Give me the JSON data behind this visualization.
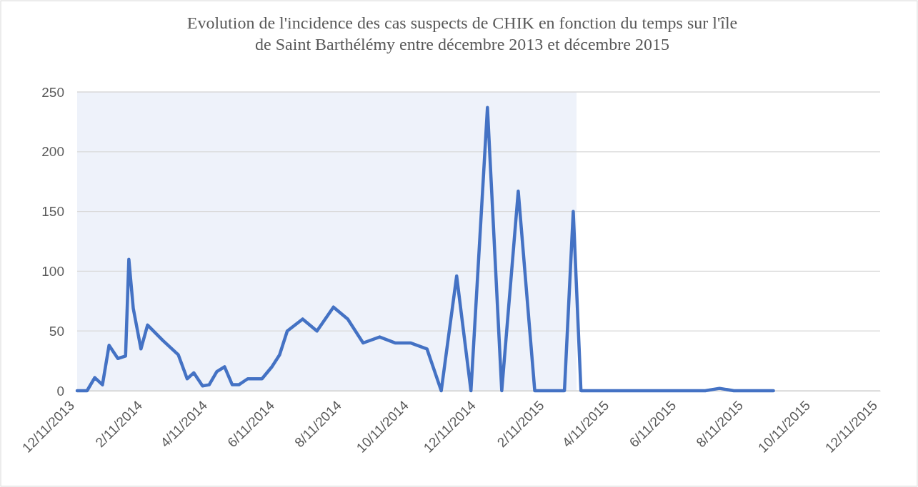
{
  "chart_data": {
    "type": "line",
    "title": "Evolution de l'incidence des cas suspects de CHIK en fonction du temps sur l'île de Saint Barthélémy entre décembre 2013 et décembre 2015",
    "x": [
      "2013-12-11",
      "2013-12-20",
      "2013-12-27",
      "2014-01-03",
      "2014-01-09",
      "2014-01-17",
      "2014-01-24",
      "2014-01-27",
      "2014-01-31",
      "2014-02-07",
      "2014-02-13",
      "2014-02-27",
      "2014-03-13",
      "2014-03-21",
      "2014-03-27",
      "2014-04-04",
      "2014-04-10",
      "2014-04-17",
      "2014-04-24",
      "2014-05-01",
      "2014-05-07",
      "2014-05-15",
      "2014-05-28",
      "2014-06-06",
      "2014-06-13",
      "2014-06-20",
      "2014-07-04",
      "2014-07-17",
      "2014-08-01",
      "2014-08-14",
      "2014-08-28",
      "2014-09-12",
      "2014-09-26",
      "2014-10-10",
      "2014-10-25",
      "2014-11-07",
      "2014-11-21",
      "2014-12-04",
      "2014-12-19",
      "2015-01-01",
      "2015-01-16",
      "2015-01-31",
      "2015-02-27",
      "2015-03-07",
      "2015-03-14",
      "2015-07-05",
      "2015-07-18",
      "2015-07-31",
      "2015-09-05"
    ],
    "series": [
      {
        "color": "#4472c4",
        "values": [
          0,
          0,
          11,
          5,
          38,
          27,
          29,
          110,
          69,
          35,
          55,
          42,
          30,
          10,
          15,
          4,
          5,
          16,
          20,
          5,
          5,
          10,
          10,
          20,
          30,
          50,
          60,
          50,
          70,
          60,
          40,
          45,
          40,
          40,
          35,
          0,
          96,
          0,
          237,
          0,
          167,
          0,
          0,
          150,
          0,
          0,
          2,
          0,
          0
        ]
      }
    ],
    "xlim": [
      "2013-12-11",
      "2015-12-11"
    ],
    "xticks": [
      {
        "value": "2013-12-11",
        "label": "12/11/2013"
      },
      {
        "value": "2014-02-11",
        "label": "2/11/2014"
      },
      {
        "value": "2014-04-11",
        "label": "4/11/2014"
      },
      {
        "value": "2014-06-11",
        "label": "6/11/2014"
      },
      {
        "value": "2014-08-11",
        "label": "8/11/2014"
      },
      {
        "value": "2014-10-11",
        "label": "10/11/2014"
      },
      {
        "value": "2014-12-11",
        "label": "12/11/2014"
      },
      {
        "value": "2015-02-11",
        "label": "2/11/2015"
      },
      {
        "value": "2015-04-11",
        "label": "4/11/2015"
      },
      {
        "value": "2015-06-11",
        "label": "6/11/2015"
      },
      {
        "value": "2015-08-11",
        "label": "8/11/2015"
      },
      {
        "value": "2015-10-11",
        "label": "10/11/2015"
      },
      {
        "value": "2015-12-11",
        "label": "12/11/2015"
      }
    ],
    "ylim": [
      0,
      250
    ],
    "yticks": [
      0,
      50,
      100,
      150,
      200,
      250
    ],
    "grid": "y",
    "line_style": "solid",
    "bands": [
      {
        "axis": "x",
        "from": "2013-12-11",
        "to": "2015-03-10",
        "color": "#eef2fa"
      }
    ]
  }
}
